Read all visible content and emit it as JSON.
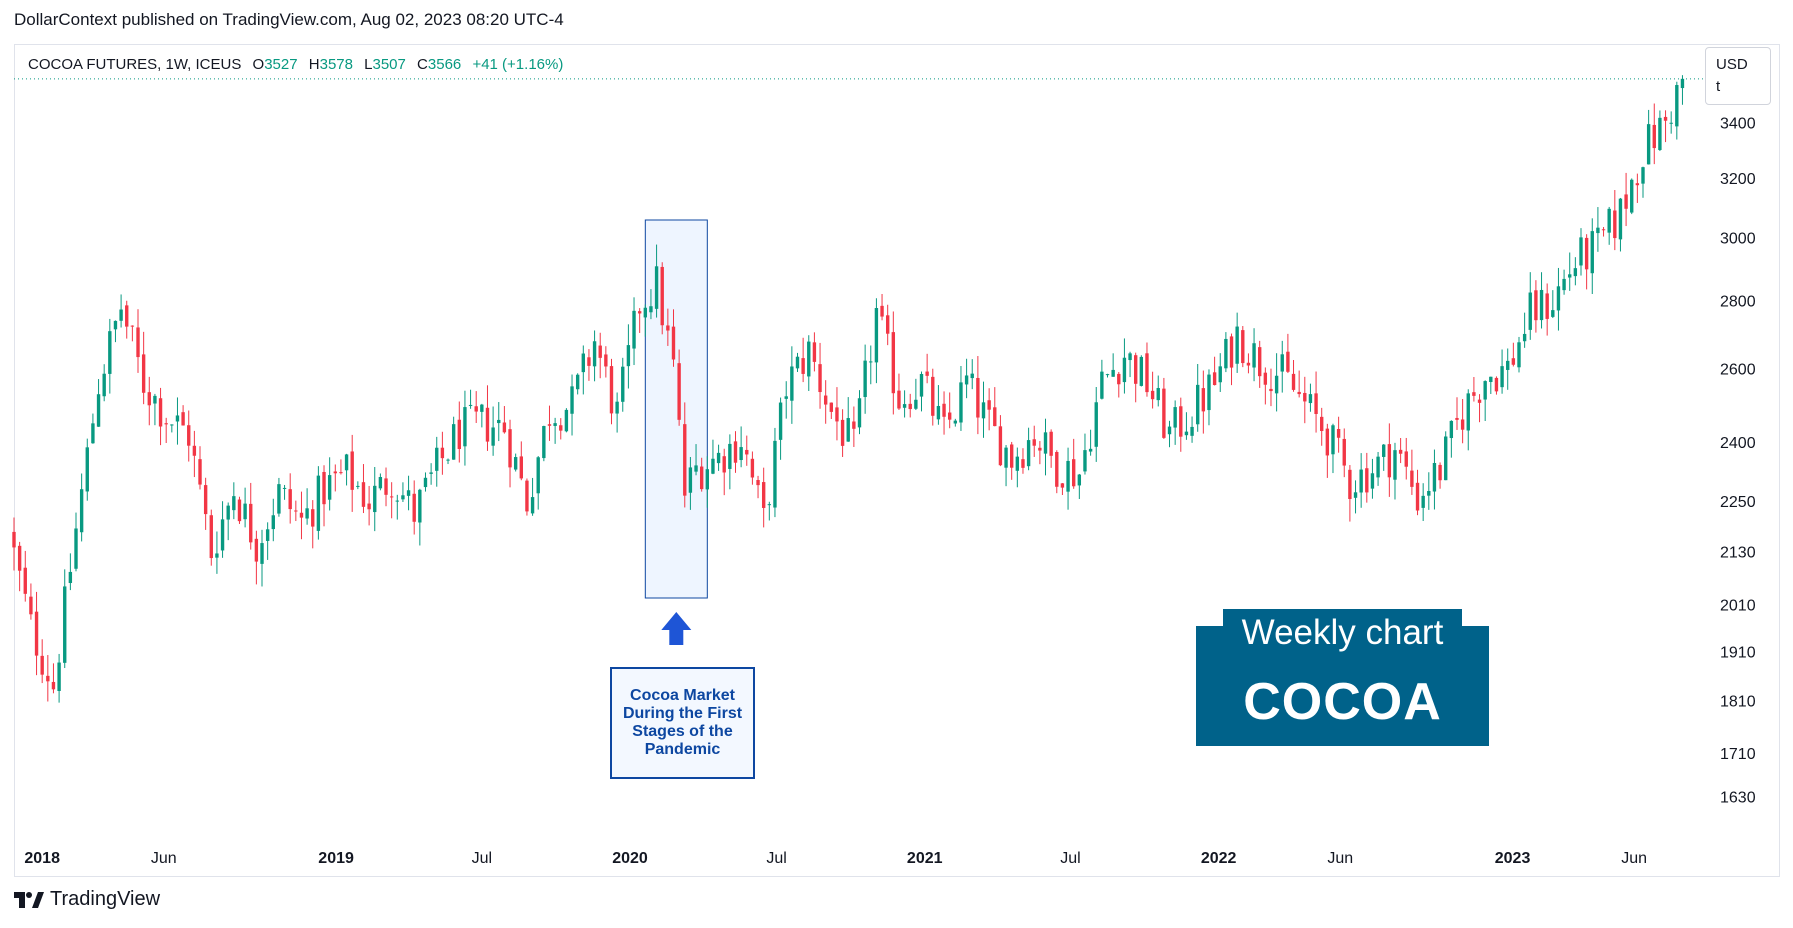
{
  "header": {
    "publisher_line": "DollarContext published on TradingView.com, Aug 02, 2023 08:20 UTC-4"
  },
  "legend": {
    "symbol": "COCOA FUTURES, 1W, ICEUS",
    "open_label": "O",
    "open": "3527",
    "high_label": "H",
    "high": "3578",
    "low_label": "L",
    "low": "3507",
    "close_label": "C",
    "close": "3566",
    "change": "+41 (+1.16%)"
  },
  "currency": {
    "line1": "USD",
    "line2": "t"
  },
  "annotation": {
    "text": "Cocoa Market During the First Stages of the Pandemic"
  },
  "badge": {
    "title": "Weekly chart",
    "subtitle": "COCOA"
  },
  "footer": {
    "brand": "TradingView"
  },
  "colors": {
    "up": "#089981",
    "down": "#f23645",
    "accent": "#00628a",
    "note": "#0d47a1"
  },
  "chart_data": {
    "type": "candlestick",
    "y_scale": "log",
    "ylim": [
      1560,
      3640
    ],
    "y_ticks": [
      1630,
      1710,
      1810,
      1910,
      2010,
      2130,
      2250,
      2400,
      2600,
      2800,
      3000,
      3200,
      3400
    ],
    "x_range": [
      "2017-11-27",
      "2023-08-28"
    ],
    "x_ticks": [
      {
        "date": "2018-01-01",
        "label": "2018",
        "major": true
      },
      {
        "date": "2018-06-01",
        "label": "Jun",
        "major": false
      },
      {
        "date": "2019-01-01",
        "label": "2019",
        "major": true
      },
      {
        "date": "2019-07-01",
        "label": "Jul",
        "major": false
      },
      {
        "date": "2020-01-01",
        "label": "2020",
        "major": true
      },
      {
        "date": "2020-07-01",
        "label": "Jul",
        "major": false
      },
      {
        "date": "2021-01-01",
        "label": "2021",
        "major": true
      },
      {
        "date": "2021-07-01",
        "label": "Jul",
        "major": false
      },
      {
        "date": "2022-01-01",
        "label": "2022",
        "major": true
      },
      {
        "date": "2022-06-01",
        "label": "Jun",
        "major": false
      },
      {
        "date": "2023-01-01",
        "label": "2023",
        "major": true
      },
      {
        "date": "2023-06-01",
        "label": "Jun",
        "major": false
      }
    ],
    "last_close": 3566,
    "highlight_range": [
      "2020-01-20",
      "2020-04-06"
    ],
    "price_path": [
      [
        "2017-11-27",
        2180
      ],
      [
        "2017-12-25",
        1960
      ],
      [
        "2018-01-22",
        1840
      ],
      [
        "2018-02-19",
        2180
      ],
      [
        "2018-03-19",
        2560
      ],
      [
        "2018-04-16",
        2780
      ],
      [
        "2018-05-14",
        2560
      ],
      [
        "2018-06-11",
        2470
      ],
      [
        "2018-07-09",
        2420
      ],
      [
        "2018-08-06",
        2130
      ],
      [
        "2018-09-03",
        2280
      ],
      [
        "2018-10-01",
        2150
      ],
      [
        "2018-10-29",
        2270
      ],
      [
        "2018-11-26",
        2200
      ],
      [
        "2018-12-24",
        2280
      ],
      [
        "2019-01-21",
        2320
      ],
      [
        "2019-02-18",
        2250
      ],
      [
        "2019-03-18",
        2310
      ],
      [
        "2019-04-15",
        2220
      ],
      [
        "2019-05-13",
        2330
      ],
      [
        "2019-06-10",
        2430
      ],
      [
        "2019-07-08",
        2450
      ],
      [
        "2019-08-05",
        2440
      ],
      [
        "2019-09-02",
        2250
      ],
      [
        "2019-09-30",
        2480
      ],
      [
        "2019-10-28",
        2500
      ],
      [
        "2019-11-25",
        2680
      ],
      [
        "2019-12-23",
        2470
      ],
      [
        "2020-01-20",
        2790
      ],
      [
        "2020-02-10",
        2850
      ],
      [
        "2020-03-02",
        2600
      ],
      [
        "2020-03-16",
        2270
      ],
      [
        "2020-03-30",
        2330
      ],
      [
        "2020-04-27",
        2360
      ],
      [
        "2020-05-25",
        2410
      ],
      [
        "2020-06-22",
        2200
      ],
      [
        "2020-07-20",
        2550
      ],
      [
        "2020-08-17",
        2650
      ],
      [
        "2020-09-14",
        2480
      ],
      [
        "2020-10-12",
        2380
      ],
      [
        "2020-11-09",
        2760
      ],
      [
        "2020-12-07",
        2520
      ],
      [
        "2021-01-04",
        2560
      ],
      [
        "2021-02-01",
        2420
      ],
      [
        "2021-03-01",
        2560
      ],
      [
        "2021-03-29",
        2440
      ],
      [
        "2021-04-26",
        2360
      ],
      [
        "2021-05-24",
        2420
      ],
      [
        "2021-06-21",
        2340
      ],
      [
        "2021-07-19",
        2320
      ],
      [
        "2021-08-16",
        2560
      ],
      [
        "2021-09-13",
        2640
      ],
      [
        "2021-10-11",
        2560
      ],
      [
        "2021-11-08",
        2420
      ],
      [
        "2021-12-06",
        2480
      ],
      [
        "2022-01-03",
        2560
      ],
      [
        "2022-01-31",
        2700
      ],
      [
        "2022-02-28",
        2620
      ],
      [
        "2022-03-28",
        2580
      ],
      [
        "2022-04-25",
        2500
      ],
      [
        "2022-05-23",
        2420
      ],
      [
        "2022-06-20",
        2300
      ],
      [
        "2022-07-18",
        2330
      ],
      [
        "2022-08-15",
        2380
      ],
      [
        "2022-09-12",
        2260
      ],
      [
        "2022-10-10",
        2330
      ],
      [
        "2022-11-07",
        2480
      ],
      [
        "2022-12-05",
        2580
      ],
      [
        "2023-01-02",
        2600
      ],
      [
        "2023-01-30",
        2760
      ],
      [
        "2023-02-27",
        2800
      ],
      [
        "2023-03-27",
        2920
      ],
      [
        "2023-04-24",
        2970
      ],
      [
        "2023-05-22",
        3080
      ],
      [
        "2023-06-19",
        3300
      ],
      [
        "2023-07-17",
        3400
      ],
      [
        "2023-08-07",
        3566
      ]
    ]
  }
}
